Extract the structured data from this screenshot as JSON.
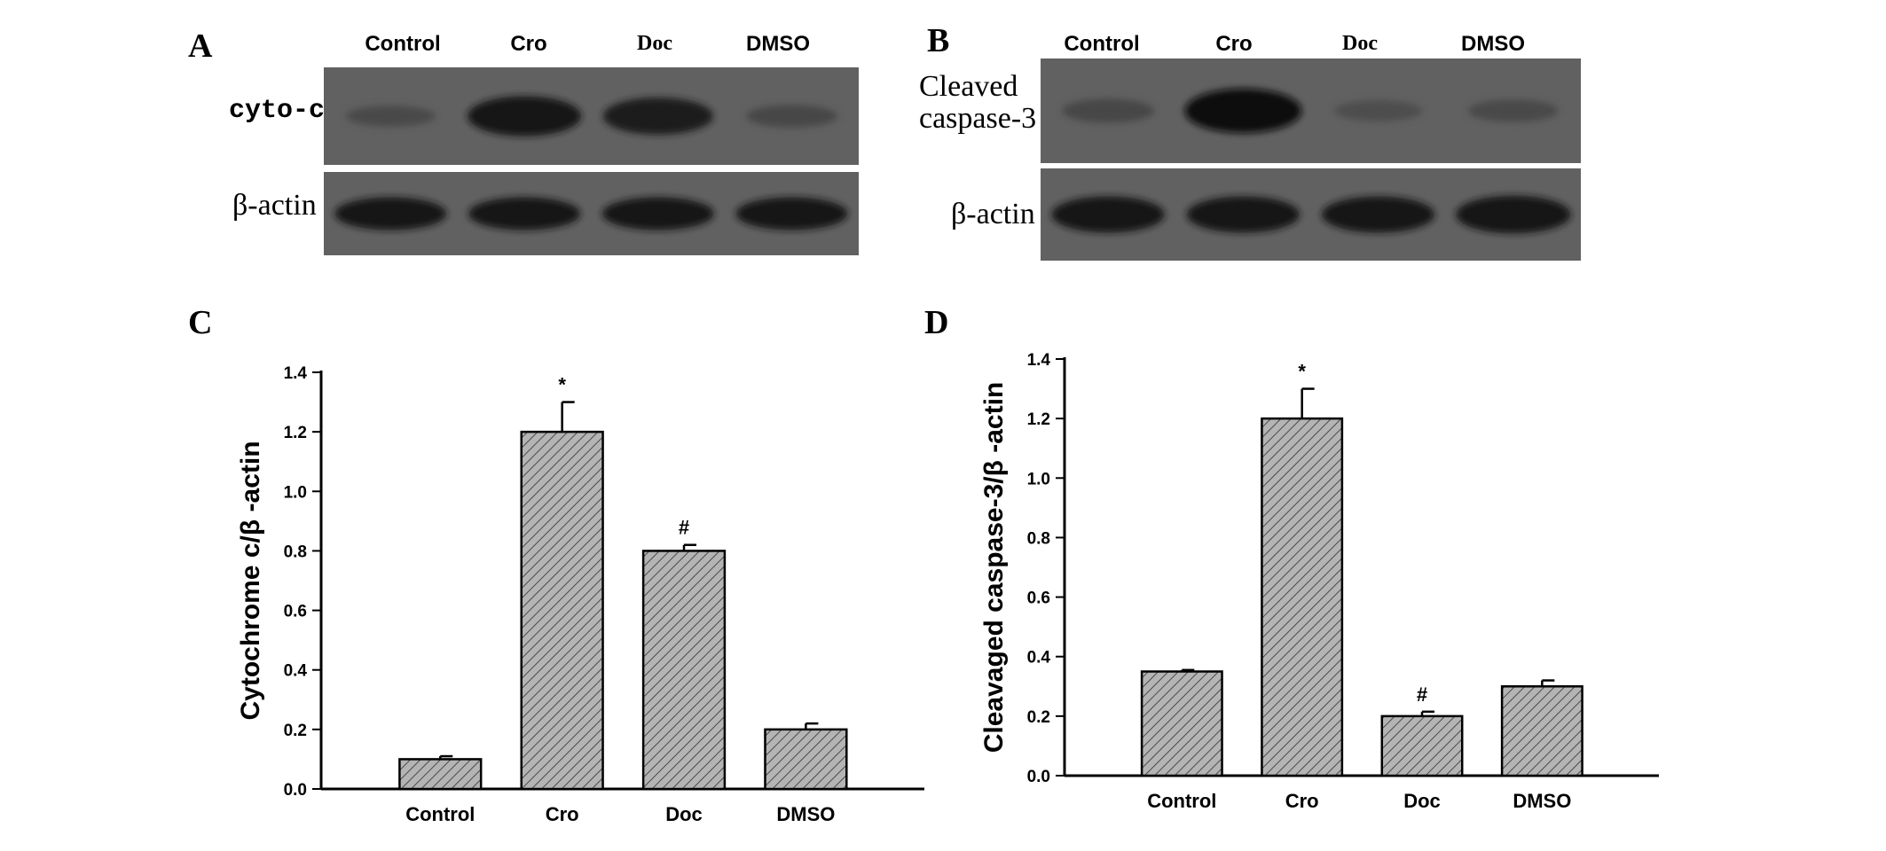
{
  "blots": {
    "A": {
      "letter": "A",
      "lanes": [
        "Control",
        "Cro",
        "Doc",
        "DMSO"
      ],
      "rows": [
        "cyto-c",
        "β-actin"
      ],
      "intensity": [
        [
          0.25,
          0.9,
          0.8,
          0.3
        ],
        [
          0.85,
          0.85,
          0.85,
          0.85
        ]
      ]
    },
    "B": {
      "letter": "B",
      "lanes": [
        "Control",
        "Cro",
        "Doc",
        "DMSO"
      ],
      "rows": [
        "Cleaved\ncaspase-3",
        "β-actin"
      ],
      "intensity": [
        [
          0.3,
          0.95,
          0.2,
          0.25
        ],
        [
          0.85,
          0.85,
          0.85,
          0.9
        ]
      ]
    }
  },
  "chart_data": [
    {
      "type": "bar",
      "panel": "C",
      "categories": [
        "Control",
        "Cro",
        "Doc",
        "DMSO"
      ],
      "values": [
        0.1,
        1.2,
        0.8,
        0.2
      ],
      "errors": [
        0.01,
        0.1,
        0.02,
        0.02
      ],
      "annotations": [
        "",
        "*",
        "#",
        ""
      ],
      "ylabel": "Cytochrome c/β -actin",
      "ylim": [
        0,
        1.4
      ],
      "yticks": [
        "0.0",
        "0.2",
        "0.4",
        "0.6",
        "0.8",
        "1.0",
        "1.2",
        "1.4"
      ],
      "bar_fill": "#b4b4b4",
      "grid": false
    },
    {
      "type": "bar",
      "panel": "D",
      "categories": [
        "Control",
        "Cro",
        "Doc",
        "DMSO"
      ],
      "values": [
        0.35,
        1.2,
        0.2,
        0.3
      ],
      "errors": [
        0.005,
        0.1,
        0.015,
        0.02
      ],
      "annotations": [
        "",
        "*",
        "#",
        ""
      ],
      "ylabel": "Cleavaged caspase-3/β -actin",
      "ylim": [
        0,
        1.4
      ],
      "yticks": [
        "0.0",
        "0.2",
        "0.4",
        "0.6",
        "0.8",
        "1.0",
        "1.2",
        "1.4"
      ],
      "bar_fill": "#b4b4b4",
      "grid": false
    }
  ]
}
